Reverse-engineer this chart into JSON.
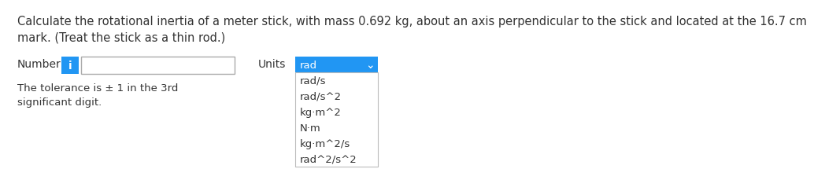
{
  "question_text_line1": "Calculate the rotational inertia of a meter stick, with mass 0.692 kg, about an axis perpendicular to the stick and located at the 16.7 cm",
  "question_text_line2": "mark. (Treat the stick as a thin rod.)",
  "number_label": "Number",
  "units_label": "Units",
  "info_icon_color": "#2196F3",
  "info_icon_text": "i",
  "input_box_border": "#aaaaaa",
  "dropdown_header_color": "#2196F3",
  "dropdown_selected": "rad",
  "dropdown_items": [
    "rad",
    "rad/s",
    "rad/s^2",
    "kg·m^2",
    "N·m",
    "kg·m^2/s",
    "rad^2/s^2"
  ],
  "dropdown_border_color": "#bbbbbb",
  "chevron": "⌄",
  "tolerance_text_line1": "The tolerance is ± 1 in the 3rd",
  "tolerance_text_line2": "significant digit.",
  "text_color": "#333333",
  "blue_text_color": "#2196F3",
  "background_color": "#ffffff",
  "font_size_question": 10.5,
  "font_size_ui": 10,
  "font_size_small": 9.5
}
